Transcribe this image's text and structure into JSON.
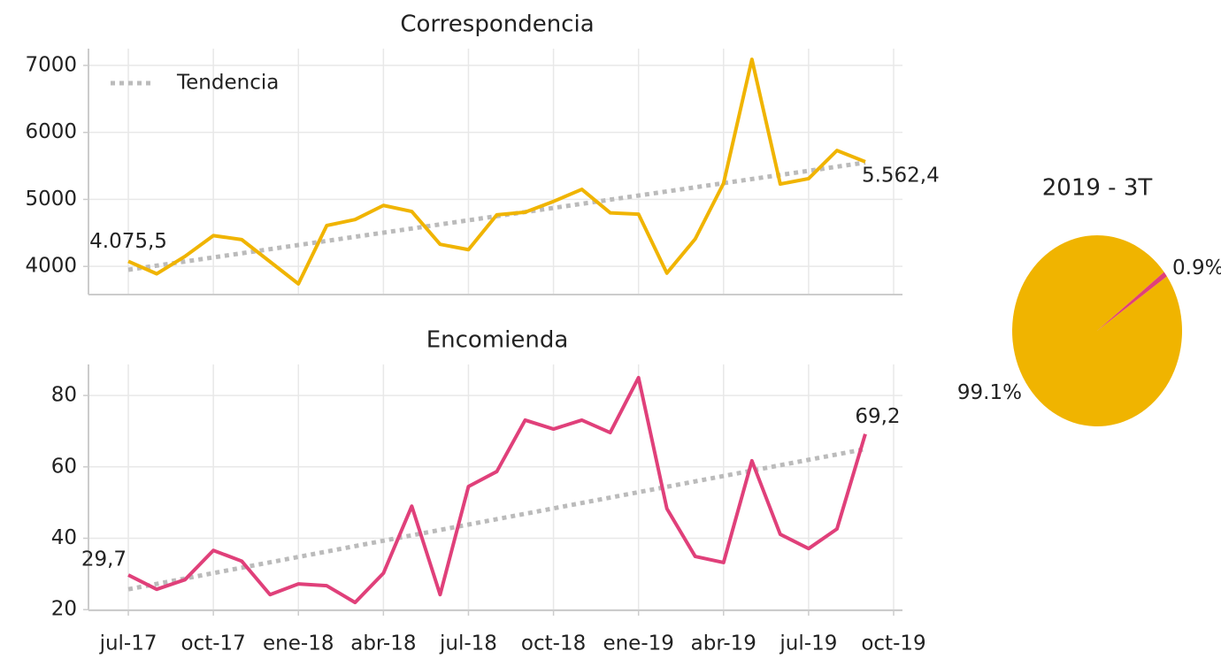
{
  "chart_data": [
    {
      "type": "line",
      "title": "Correspondencia",
      "color": "#f0b400",
      "x": [
        "2017-07",
        "2017-08",
        "2017-09",
        "2017-10",
        "2017-11",
        "2017-12",
        "2018-01",
        "2018-02",
        "2018-03",
        "2018-04",
        "2018-05",
        "2018-06",
        "2018-07",
        "2018-08",
        "2018-09",
        "2018-10",
        "2018-11",
        "2018-12",
        "2019-01",
        "2019-02",
        "2019-03",
        "2019-04",
        "2019-05",
        "2019-06",
        "2019-07",
        "2019-08",
        "2019-09"
      ],
      "values": [
        4075.5,
        3890,
        4150,
        4460,
        4400,
        4070,
        3740,
        4610,
        4700,
        4910,
        4820,
        4330,
        4250,
        4770,
        4810,
        4970,
        5150,
        4800,
        4780,
        3900,
        4410,
        5240,
        7090,
        5230,
        5310,
        5730,
        5562.4
      ],
      "value_labels": [
        "4.075,5",
        null,
        null,
        null,
        null,
        null,
        null,
        null,
        null,
        null,
        null,
        null,
        null,
        null,
        null,
        null,
        null,
        null,
        null,
        null,
        null,
        null,
        null,
        null,
        null,
        null,
        "5.562,4"
      ],
      "trend": {
        "name": "Tendencia",
        "color": "#bbbbbb",
        "values": [
          3950,
          5550
        ]
      },
      "legend": "upper left",
      "xlim": [
        "2017-06",
        "2019-10"
      ],
      "ylim": [
        3580,
        7250
      ],
      "yticks": [
        4000,
        5000,
        6000,
        7000
      ],
      "grid": true
    },
    {
      "type": "line",
      "title": "Encomienda",
      "color": "#e0407a",
      "x": [
        "2017-07",
        "2017-08",
        "2017-09",
        "2017-10",
        "2017-11",
        "2017-12",
        "2018-01",
        "2018-02",
        "2018-03",
        "2018-04",
        "2018-05",
        "2018-06",
        "2018-07",
        "2018-08",
        "2018-09",
        "2018-10",
        "2018-11",
        "2018-12",
        "2019-01",
        "2019-02",
        "2019-03",
        "2019-04",
        "2019-05",
        "2019-06",
        "2019-07",
        "2019-08",
        "2019-09"
      ],
      "values": [
        29.7,
        25.7,
        28.4,
        36.6,
        33.6,
        24.2,
        27.2,
        26.7,
        22,
        30.2,
        49,
        24.2,
        54.5,
        58.7,
        73.1,
        70.6,
        73.1,
        69.6,
        85,
        48.3,
        34.9,
        33.2,
        61.7,
        41.1,
        37.1,
        42.6,
        69.2
      ],
      "value_labels": [
        "29,7",
        null,
        null,
        null,
        null,
        null,
        null,
        null,
        null,
        null,
        null,
        null,
        null,
        null,
        null,
        null,
        null,
        null,
        null,
        null,
        null,
        null,
        null,
        null,
        null,
        null,
        "69,2"
      ],
      "trend": {
        "color": "#bbbbbb",
        "values": [
          25.7,
          65
        ]
      },
      "xlim": [
        "2017-06",
        "2019-10"
      ],
      "xticks": [
        {
          "value": "2017-07",
          "label": "jul-17"
        },
        {
          "value": "2017-10",
          "label": "oct-17"
        },
        {
          "value": "2018-01",
          "label": "ene-18"
        },
        {
          "value": "2018-04",
          "label": "abr-18"
        },
        {
          "value": "2018-07",
          "label": "jul-18"
        },
        {
          "value": "2018-10",
          "label": "oct-18"
        },
        {
          "value": "2019-01",
          "label": "ene-19"
        },
        {
          "value": "2019-04",
          "label": "abr-19"
        },
        {
          "value": "2019-07",
          "label": "jul-19"
        },
        {
          "value": "2019-10",
          "label": "oct-19"
        }
      ],
      "ylim": [
        19.8,
        88.7
      ],
      "yticks": [
        20,
        40,
        60,
        80
      ],
      "grid": true
    },
    {
      "type": "pie",
      "title": "2019 - 3T",
      "values": [
        99.1,
        0.9
      ],
      "value_labels": [
        "99.1%",
        "0.9%"
      ],
      "colors": [
        "#f0b400",
        "#e0407a"
      ],
      "startangle": 38
    }
  ]
}
